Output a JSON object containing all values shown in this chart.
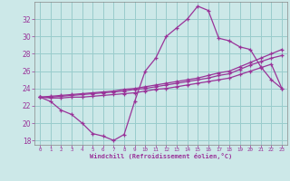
{
  "xlabel": "Windchill (Refroidissement éolien,°C)",
  "bg_color": "#cce8e8",
  "grid_color": "#99cccc",
  "line_color": "#993399",
  "hours": [
    0,
    1,
    2,
    3,
    4,
    5,
    6,
    7,
    8,
    9,
    10,
    11,
    12,
    13,
    14,
    15,
    16,
    17,
    18,
    19,
    20,
    21,
    22,
    23
  ],
  "windchill": [
    23.0,
    22.5,
    21.5,
    21.0,
    20.0,
    18.8,
    18.5,
    18.0,
    18.7,
    22.5,
    26.0,
    27.5,
    30.0,
    31.0,
    32.0,
    33.5,
    33.0,
    29.8,
    29.5,
    28.8,
    28.5,
    26.5,
    25.0,
    24.0
  ],
  "temp_band1": [
    23.0,
    23.1,
    23.2,
    23.3,
    23.4,
    23.5,
    23.6,
    23.7,
    23.9,
    24.0,
    24.2,
    24.4,
    24.6,
    24.8,
    25.0,
    25.2,
    25.5,
    25.8,
    26.0,
    26.5,
    27.0,
    27.5,
    28.0,
    28.5
  ],
  "temp_band2": [
    23.0,
    23.0,
    23.1,
    23.2,
    23.3,
    23.4,
    23.5,
    23.6,
    23.7,
    23.9,
    24.0,
    24.2,
    24.4,
    24.6,
    24.8,
    25.0,
    25.2,
    25.5,
    25.7,
    26.2,
    26.7,
    27.1,
    27.5,
    27.8
  ],
  "temp_band3": [
    23.0,
    22.9,
    22.9,
    23.0,
    23.0,
    23.1,
    23.2,
    23.3,
    23.4,
    23.5,
    23.7,
    23.9,
    24.0,
    24.2,
    24.4,
    24.6,
    24.8,
    25.0,
    25.2,
    25.6,
    26.0,
    26.4,
    26.8,
    24.0
  ],
  "ylim": [
    17.5,
    34.0
  ],
  "yticks": [
    18,
    20,
    22,
    24,
    26,
    28,
    30,
    32
  ],
  "xlim": [
    -0.5,
    23.5
  ]
}
